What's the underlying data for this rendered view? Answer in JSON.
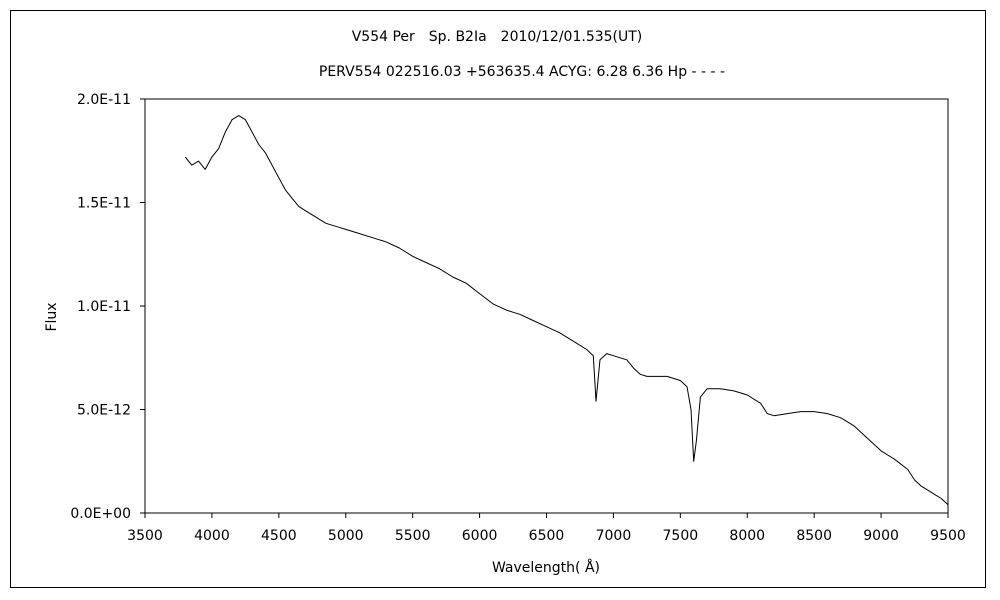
{
  "chart_data": {
    "type": "line",
    "title": "V554 Per　Sp. B2Ia　2010/12/01.535(UT)",
    "subtitle": "PERV554 022516.03 +563635.4 ACYG: 6.28 6.36 Hp - - - -",
    "xlabel": "Wavelength( Å)",
    "ylabel": "Flux",
    "xlim": [
      3500,
      9500
    ],
    "ylim": [
      0,
      2e-11
    ],
    "x_ticks": [
      3500,
      4000,
      4500,
      5000,
      5500,
      6000,
      6500,
      7000,
      7500,
      8000,
      8500,
      9000,
      9500
    ],
    "x_tick_labels": [
      "3500",
      "4000",
      "4500",
      "5000",
      "5500",
      "6000",
      "6500",
      "7000",
      "7500",
      "8000",
      "8500",
      "9000",
      "9500"
    ],
    "y_ticks": [
      0,
      5e-12,
      1e-11,
      1.5e-11,
      2e-11
    ],
    "y_tick_labels": [
      "0.0E+00",
      "5.0E-12",
      "1.0E-11",
      "1.5E-11",
      "2.0E-11"
    ],
    "grid": false,
    "legend": "none",
    "series": [
      {
        "color": "#000000",
        "x": [
          3800,
          3850,
          3900,
          3950,
          4000,
          4050,
          4100,
          4150,
          4200,
          4250,
          4300,
          4350,
          4400,
          4450,
          4500,
          4550,
          4600,
          4650,
          4700,
          4750,
          4800,
          4850,
          4900,
          4950,
          5000,
          5100,
          5200,
          5300,
          5400,
          5500,
          5600,
          5700,
          5800,
          5900,
          6000,
          6100,
          6200,
          6300,
          6400,
          6500,
          6600,
          6700,
          6800,
          6850,
          6870,
          6900,
          6950,
          7000,
          7050,
          7100,
          7150,
          7200,
          7250,
          7300,
          7400,
          7500,
          7550,
          7580,
          7600,
          7620,
          7650,
          7700,
          7800,
          7900,
          8000,
          8100,
          8150,
          8200,
          8300,
          8400,
          8500,
          8600,
          8700,
          8800,
          8900,
          9000,
          9100,
          9200,
          9250,
          9300,
          9350,
          9400,
          9450,
          9500
        ],
        "y": [
          1.72e-11,
          1.68e-11,
          1.7e-11,
          1.66e-11,
          1.72e-11,
          1.76e-11,
          1.84e-11,
          1.9e-11,
          1.92e-11,
          1.9e-11,
          1.84e-11,
          1.78e-11,
          1.74e-11,
          1.68e-11,
          1.62e-11,
          1.56e-11,
          1.52e-11,
          1.48e-11,
          1.46e-11,
          1.44e-11,
          1.42e-11,
          1.4e-11,
          1.39e-11,
          1.38e-11,
          1.37e-11,
          1.35e-11,
          1.33e-11,
          1.31e-11,
          1.28e-11,
          1.24e-11,
          1.21e-11,
          1.18e-11,
          1.14e-11,
          1.11e-11,
          1.06e-11,
          1.01e-11,
          9.8e-12,
          9.6e-12,
          9.3e-12,
          9e-12,
          8.7e-12,
          8.3e-12,
          7.9e-12,
          7.6e-12,
          5.4e-12,
          7.4e-12,
          7.7e-12,
          7.6e-12,
          7.5e-12,
          7.4e-12,
          7e-12,
          6.7e-12,
          6.6e-12,
          6.6e-12,
          6.6e-12,
          6.4e-12,
          6.1e-12,
          5e-12,
          2.5e-12,
          3.5e-12,
          5.6e-12,
          6e-12,
          6e-12,
          5.9e-12,
          5.7e-12,
          5.3e-12,
          4.8e-12,
          4.7e-12,
          4.8e-12,
          4.9e-12,
          4.9e-12,
          4.8e-12,
          4.6e-12,
          4.2e-12,
          3.6e-12,
          3e-12,
          2.6e-12,
          2.1e-12,
          1.6e-12,
          1.3e-12,
          1.1e-12,
          9e-13,
          7e-13,
          4e-13
        ]
      }
    ]
  }
}
